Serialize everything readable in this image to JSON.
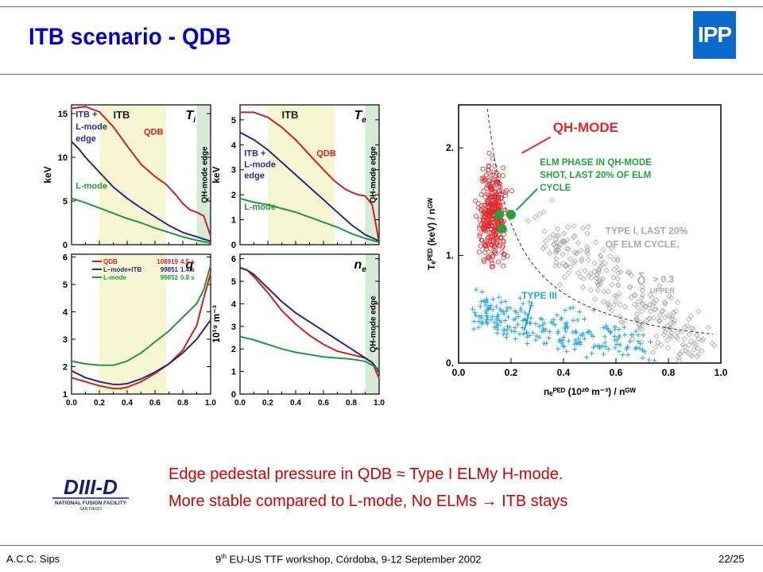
{
  "slide": {
    "title": "ITB scenario - QDB",
    "logo_text": "IPP",
    "bullets": [
      "Edge pedestal pressure in QDB ≈ Type I ELMy H-mode.",
      "More stable compared to L-mode, No ELMs → ITB stays"
    ],
    "footer_left": "A.C.C. Sips",
    "footer_center_pre": "9",
    "footer_center_sup": "th",
    "footer_center_post": " EU-US TTF workshop, Córdoba, 9-12 September 2002",
    "footer_right": "22/25",
    "diiid_logo": {
      "main": "DIII-D",
      "sub": "NATIONAL FUSION FACILITY",
      "sub2": "SAN DIEGO"
    },
    "colors": {
      "title": "#0000cc",
      "bullets": "#d40000",
      "logo_bg": "#0b6ac9",
      "qdb": "#cc2222",
      "itb": "#2a2a80",
      "lmode": "#1f9a3a",
      "band_itb": "#f6f6d2",
      "band_edge": "#d6ebd6"
    }
  },
  "chart_data": [
    {
      "type": "line",
      "panel": "Ti",
      "corner_label": "T",
      "corner_sub": "i",
      "ylabel": "keV",
      "xlim": [
        0,
        1
      ],
      "ylim": [
        0,
        16
      ],
      "yticks": [
        0,
        5,
        10,
        15
      ],
      "xticks": [],
      "band_labels": {
        "itb": "ITB",
        "edge": "QH-mode edge"
      },
      "bands": {
        "itb": [
          0.2,
          0.68
        ],
        "edge": [
          0.9,
          1.0
        ]
      },
      "annotations": [
        {
          "text": "ITB +",
          "x": 0.03,
          "y": 14.6,
          "color": "#2a2a80"
        },
        {
          "text": "L-mode",
          "x": 0.03,
          "y": 13.2,
          "color": "#2a2a80"
        },
        {
          "text": "edge",
          "x": 0.03,
          "y": 11.8,
          "color": "#2a2a80"
        },
        {
          "text": "QDB",
          "x": 0.52,
          "y": 12.6,
          "color": "#cc2222"
        },
        {
          "text": "L-mode",
          "x": 0.03,
          "y": 6.4,
          "color": "#1f9a3a"
        }
      ],
      "series": [
        {
          "key": "qdb",
          "color": "#cc2222",
          "x": [
            0,
            0.1,
            0.2,
            0.3,
            0.4,
            0.5,
            0.6,
            0.68,
            0.75,
            0.8,
            0.85,
            0.9,
            0.95,
            1.0
          ],
          "y": [
            15.6,
            15.8,
            15.2,
            13.5,
            11.3,
            9.2,
            7.8,
            6.9,
            5.7,
            4.7,
            4.0,
            3.7,
            3.3,
            1.0
          ]
        },
        {
          "key": "itb",
          "color": "#2a2a80",
          "x": [
            0,
            0.05,
            0.1,
            0.2,
            0.3,
            0.4,
            0.5,
            0.6,
            0.7,
            0.8,
            0.9,
            1.0
          ],
          "y": [
            11.8,
            11.0,
            10.0,
            8.3,
            6.6,
            5.3,
            4.2,
            3.2,
            2.2,
            1.4,
            0.9,
            0.4
          ]
        },
        {
          "key": "lmode",
          "color": "#1f9a3a",
          "x": [
            0,
            0.1,
            0.2,
            0.3,
            0.4,
            0.5,
            0.6,
            0.7,
            0.8,
            0.9,
            1.0
          ],
          "y": [
            5.3,
            4.8,
            4.2,
            3.6,
            3.0,
            2.5,
            1.9,
            1.4,
            0.9,
            0.5,
            0.2
          ]
        }
      ]
    },
    {
      "type": "line",
      "panel": "Te",
      "corner_label": "T",
      "corner_sub": "e",
      "ylabel": "keV",
      "xlim": [
        0,
        1
      ],
      "ylim": [
        0,
        5.6
      ],
      "yticks": [
        0,
        1,
        2,
        3,
        4,
        5
      ],
      "xticks": [],
      "band_labels": {
        "itb": "ITB",
        "edge": "QH-mode edge"
      },
      "bands": {
        "itb": [
          0.2,
          0.68
        ],
        "edge": [
          0.9,
          1.0
        ]
      },
      "annotations": [
        {
          "text": "ITB +",
          "x": 0.03,
          "y": 3.55,
          "color": "#2a2a80"
        },
        {
          "text": "L-mode",
          "x": 0.03,
          "y": 3.1,
          "color": "#2a2a80"
        },
        {
          "text": "edge",
          "x": 0.03,
          "y": 2.65,
          "color": "#2a2a80"
        },
        {
          "text": "QDB",
          "x": 0.55,
          "y": 3.55,
          "color": "#cc2222"
        },
        {
          "text": "L-mode",
          "x": 0.03,
          "y": 1.4,
          "color": "#1f9a3a"
        }
      ],
      "series": [
        {
          "key": "qdb",
          "color": "#cc2222",
          "x": [
            0,
            0.1,
            0.2,
            0.3,
            0.4,
            0.5,
            0.6,
            0.68,
            0.75,
            0.8,
            0.85,
            0.9,
            0.95,
            1.0
          ],
          "y": [
            5.3,
            5.3,
            5.1,
            4.7,
            4.2,
            3.6,
            3.0,
            2.55,
            2.25,
            2.1,
            2.0,
            1.95,
            1.6,
            0.1
          ]
        },
        {
          "key": "itb",
          "color": "#2a2a80",
          "x": [
            0,
            0.1,
            0.2,
            0.3,
            0.4,
            0.5,
            0.6,
            0.7,
            0.8,
            0.9,
            1.0
          ],
          "y": [
            4.5,
            4.2,
            3.8,
            3.3,
            2.8,
            2.3,
            1.8,
            1.3,
            0.8,
            0.4,
            0.15
          ]
        },
        {
          "key": "lmode",
          "color": "#1f9a3a",
          "x": [
            0,
            0.1,
            0.2,
            0.3,
            0.4,
            0.5,
            0.6,
            0.7,
            0.8,
            0.9,
            1.0
          ],
          "y": [
            1.85,
            1.7,
            1.6,
            1.45,
            1.3,
            1.1,
            0.9,
            0.7,
            0.45,
            0.25,
            0.1
          ]
        }
      ]
    },
    {
      "type": "line",
      "panel": "q",
      "corner_label": "q",
      "corner_sub": "",
      "ylabel": "",
      "xlim": [
        0,
        1
      ],
      "ylim": [
        1,
        6.1
      ],
      "yticks": [
        1,
        2,
        3,
        4,
        5,
        6
      ],
      "xticks": [
        0.0,
        0.2,
        0.4,
        0.6,
        0.8,
        1.0
      ],
      "xtick_labels": [
        "0.0",
        "0.2",
        "0.4",
        "0.6",
        "0.8",
        "1.0"
      ],
      "band_labels": {
        "itb": "",
        "edge": ""
      },
      "bands": {
        "itb": [
          0.2,
          0.68
        ],
        "edge": []
      },
      "legend": [
        {
          "label": "QDB",
          "shot": "106919",
          "time": "4.5 s",
          "color": "#cc2222"
        },
        {
          "label": "L–mode+ITB",
          "shot": "99851",
          "time": "1.4 s",
          "color": "#2a2a80"
        },
        {
          "label": "L-mode",
          "shot": "99852",
          "time": "0.8 s",
          "color": "#1f9a3a"
        }
      ],
      "series": [
        {
          "key": "qdb",
          "color": "#cc2222",
          "x": [
            0,
            0.1,
            0.2,
            0.3,
            0.35,
            0.4,
            0.5,
            0.6,
            0.7,
            0.8,
            0.9,
            0.95,
            1.0
          ],
          "y": [
            1.6,
            1.45,
            1.3,
            1.2,
            1.2,
            1.25,
            1.45,
            1.75,
            2.1,
            2.6,
            3.5,
            4.5,
            5.4
          ]
        },
        {
          "key": "itb",
          "color": "#2a2a80",
          "x": [
            0,
            0.1,
            0.2,
            0.3,
            0.35,
            0.4,
            0.5,
            0.6,
            0.7,
            0.8,
            0.9,
            1.0
          ],
          "y": [
            1.85,
            1.6,
            1.45,
            1.35,
            1.35,
            1.38,
            1.55,
            1.8,
            2.1,
            2.5,
            3.0,
            3.7
          ]
        },
        {
          "key": "lmode",
          "color": "#1f9a3a",
          "x": [
            0,
            0.1,
            0.2,
            0.3,
            0.4,
            0.5,
            0.6,
            0.7,
            0.8,
            0.9,
            0.95,
            1.0
          ],
          "y": [
            2.2,
            2.1,
            2.05,
            2.05,
            2.2,
            2.5,
            2.9,
            3.3,
            3.8,
            4.3,
            4.8,
            5.7
          ]
        }
      ]
    },
    {
      "type": "line",
      "panel": "ne",
      "corner_label": "n",
      "corner_sub": "e",
      "ylabel": "10¹⁹ m⁻³",
      "xlim": [
        0,
        1
      ],
      "ylim": [
        0,
        6.2
      ],
      "yticks": [
        0,
        1,
        2,
        3,
        4,
        5,
        6
      ],
      "xticks": [
        0.0,
        0.2,
        0.4,
        0.6,
        0.8,
        1.0
      ],
      "xtick_labels": [
        "0.0",
        "0.2",
        "0.4",
        "0.6",
        "0.8",
        "1.0"
      ],
      "band_labels": {
        "itb": "",
        "edge": "QH-mode edge"
      },
      "bands": {
        "itb": [],
        "edge": [
          0.9,
          1.0
        ]
      },
      "series": [
        {
          "key": "qdb",
          "color": "#cc2222",
          "x": [
            0,
            0.05,
            0.1,
            0.2,
            0.3,
            0.4,
            0.5,
            0.6,
            0.7,
            0.8,
            0.9,
            0.95,
            1.0
          ],
          "y": [
            5.6,
            5.5,
            5.2,
            4.5,
            3.7,
            3.1,
            2.6,
            2.2,
            1.9,
            1.75,
            1.6,
            1.4,
            0.7
          ]
        },
        {
          "key": "itb",
          "color": "#2a2a80",
          "x": [
            0,
            0.05,
            0.1,
            0.2,
            0.3,
            0.4,
            0.5,
            0.6,
            0.7,
            0.8,
            0.9,
            0.95,
            1.0
          ],
          "y": [
            5.6,
            5.5,
            5.3,
            4.7,
            4.1,
            3.6,
            3.2,
            2.8,
            2.4,
            2.0,
            1.6,
            1.4,
            1.0
          ]
        },
        {
          "key": "lmode",
          "color": "#1f9a3a",
          "x": [
            0,
            0.1,
            0.2,
            0.3,
            0.4,
            0.5,
            0.6,
            0.7,
            0.8,
            0.9,
            1.0
          ],
          "y": [
            2.55,
            2.4,
            2.2,
            2.0,
            1.85,
            1.75,
            1.65,
            1.6,
            1.55,
            1.45,
            1.1
          ]
        }
      ]
    },
    {
      "type": "scatter",
      "panel": "pedestal",
      "xlabel": "nₑᴾᴱᴰ (10²⁰ m⁻³) / nᴳᵂ",
      "ylabel": "Tₑᴾᴱᴰ (keV) / nᴳᵂ",
      "xlim": [
        0,
        1.0
      ],
      "ylim": [
        0,
        2.4
      ],
      "xticks": [
        0.0,
        0.2,
        0.4,
        0.6,
        0.8,
        1.0
      ],
      "xtick_labels": [
        "0.0",
        "0.2",
        "0.4",
        "0.6",
        "0.8",
        "1.0"
      ],
      "yticks": [
        0,
        1,
        2
      ],
      "ytick_labels": [
        "0.",
        "1.",
        "2."
      ],
      "labels": {
        "qh": "QH-MODE",
        "elm": [
          "ELM PHASE IN QH-MODE",
          "SHOT, LAST 20% OF ELM",
          "CYCLE"
        ],
        "type1": [
          "TYPE I, LAST 20%",
          "OF ELM CYCLE,"
        ],
        "delta": "δ",
        "delta_val": "> 0.3",
        "upper": "UPPER",
        "type3": "TYPE III"
      },
      "clusters": [
        {
          "name": "QH-mode",
          "marker": "circle",
          "color": "#e3262b",
          "center": [
            0.13,
            1.38
          ],
          "spread": [
            0.025,
            0.22
          ]
        },
        {
          "name": "Type I",
          "marker": "diamond",
          "color": "#a8a8a8",
          "center": [
            0.58,
            0.75
          ],
          "spread": [
            0.14,
            0.2
          ]
        },
        {
          "name": "Type III",
          "marker": "plus",
          "color": "#22a7e0",
          "center": [
            0.3,
            0.25
          ],
          "spread": [
            0.18,
            0.1
          ]
        }
      ],
      "elm_points": [
        [
          0.155,
          1.38
        ],
        [
          0.2,
          1.38
        ],
        [
          0.165,
          1.25
        ]
      ],
      "boundary_curve": {
        "form": "a / x",
        "a": 0.26
      }
    }
  ]
}
